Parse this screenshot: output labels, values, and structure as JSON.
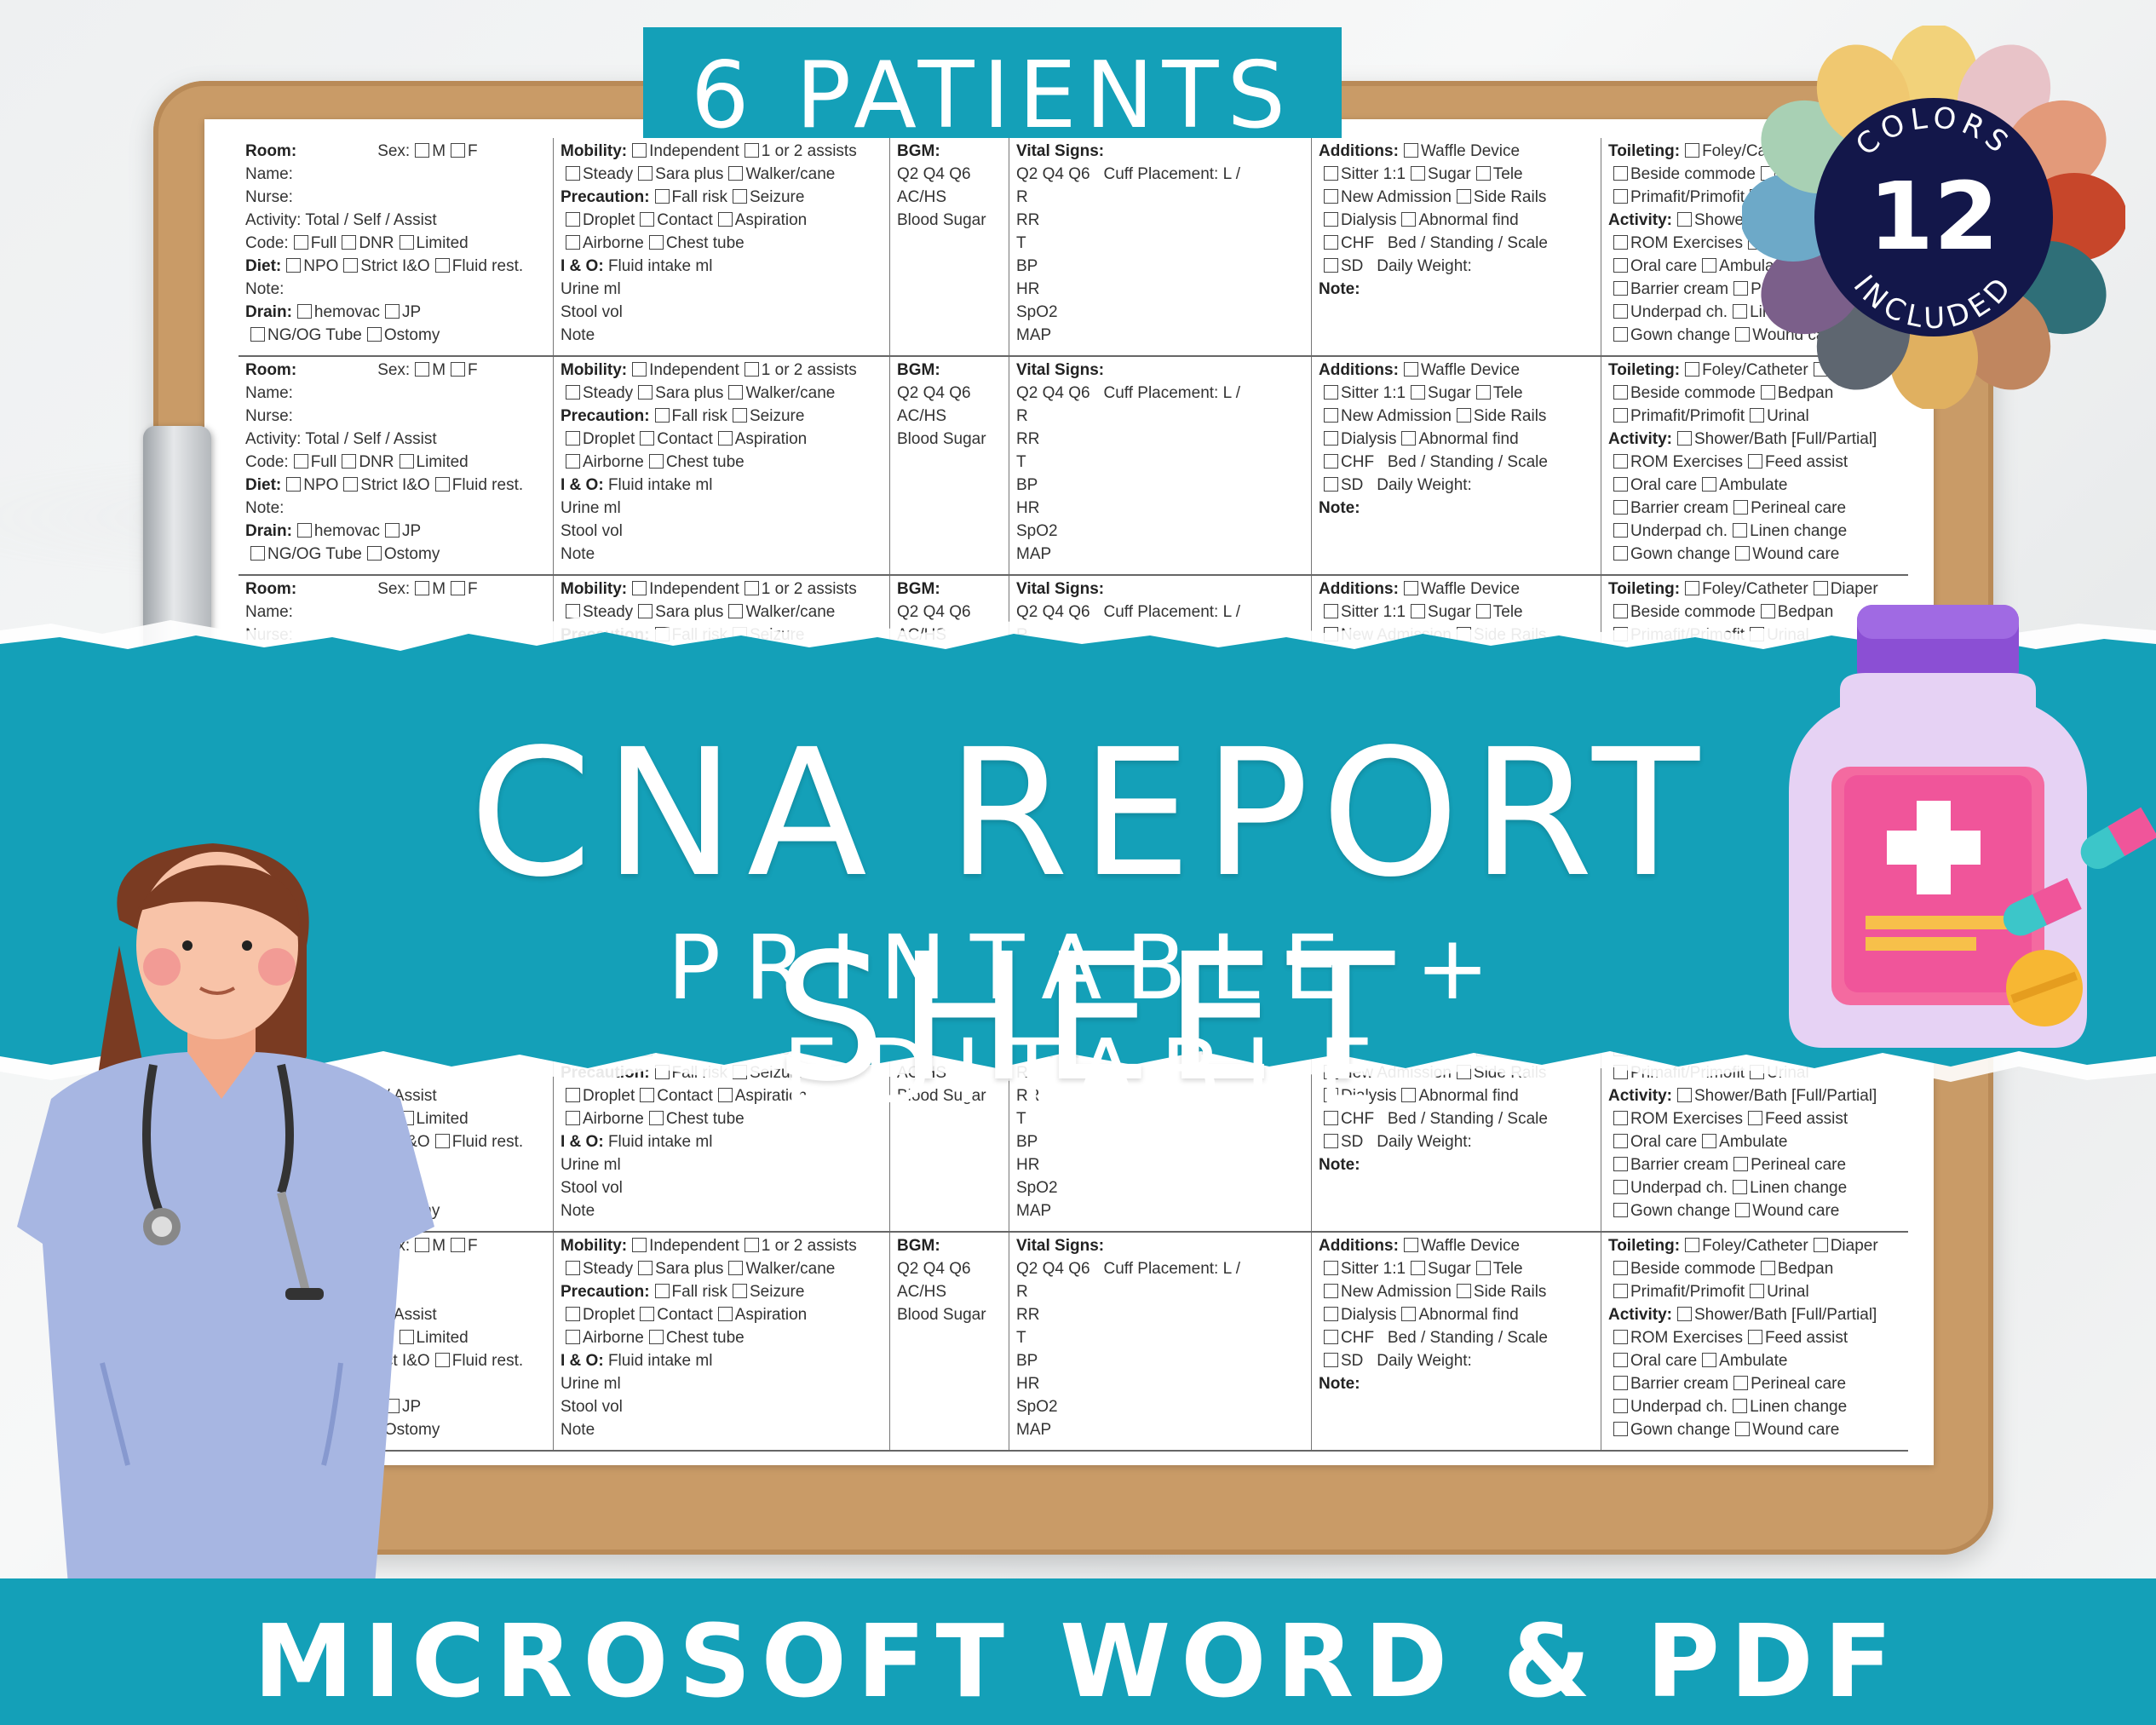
{
  "top_label": "6 PATIENTS",
  "badge": {
    "number": "12",
    "text_top": "COLORS",
    "text_bottom": "INCLUDED",
    "petal_colors": [
      "#f2d27a",
      "#e8c3c8",
      "#e39a7a",
      "#c7462a",
      "#2f6f78",
      "#c0865f",
      "#e0b060",
      "#5e6670",
      "#7b5f8a",
      "#6da9c8",
      "#a8d0b4",
      "#f0c870"
    ]
  },
  "headline": "CNA REPORT SHEET",
  "subheadline": "PRINTABLE + EDITABLE",
  "footer": "MICROSOFT WORD & PDF",
  "colors": {
    "teal": "#14a0b8",
    "clipboard": "#c99b67",
    "badge_center": "#13174a"
  },
  "sheet": {
    "col1": [
      "Room:",
      "Sex:",
      "M",
      "F",
      "Name:",
      "Nurse:",
      "Activity: Total",
      "/",
      "Self",
      "/",
      "Assist",
      "Code:",
      "Full",
      "DNR",
      "Limited",
      "Diet:",
      "NPO",
      "Strict I&O",
      "Fluid rest.",
      "Note:",
      "Drain:",
      "hemovac",
      "JP",
      "NG/OG Tube",
      "Ostomy"
    ],
    "col2": [
      "Mobility:",
      "Independent",
      "1 or 2 assists",
      "Steady",
      "Sara plus",
      "Walker/cane",
      "Precaution:",
      "Fall risk",
      "Seizure",
      "Droplet",
      "Contact",
      "Aspiration",
      "Airborne",
      "Chest tube",
      "I & O:",
      "Fluid intake ml",
      "Urine ml",
      "Stool vol",
      "Note"
    ],
    "col3": [
      "BGM:",
      "Q2",
      "Q4",
      "Q6",
      "AC/HS",
      "Blood Sugar"
    ],
    "col4": [
      "Vital Signs:",
      "Q2",
      "Q4",
      "Q6",
      "Cuff Placement: L /",
      "R",
      "RR",
      "T",
      "BP",
      "HR",
      "SpO2",
      "MAP"
    ],
    "col5": [
      "Additions:",
      "Waffle Device",
      "Sitter 1:1",
      "Sugar",
      "Tele",
      "New Admission",
      "Side Rails",
      "Dialysis",
      "Abnormal find",
      "CHF",
      "Bed / Standing / Scale",
      "SD",
      "Daily Weight:",
      "Note:"
    ],
    "col6": [
      "Toileting:",
      "Foley/Catheter",
      "Diaper",
      "Beside commode",
      "Bedpan",
      "Primafit/Primofit",
      "Urinal",
      "Activity:",
      "Shower/Bath [Full/Partial]",
      "ROM Exercises",
      "Feed assist",
      "Oral care",
      "Ambulate",
      "Barrier cream",
      "Perineal care",
      "Underpad ch.",
      "Linen change",
      "Gown change",
      "Wound care"
    ]
  }
}
